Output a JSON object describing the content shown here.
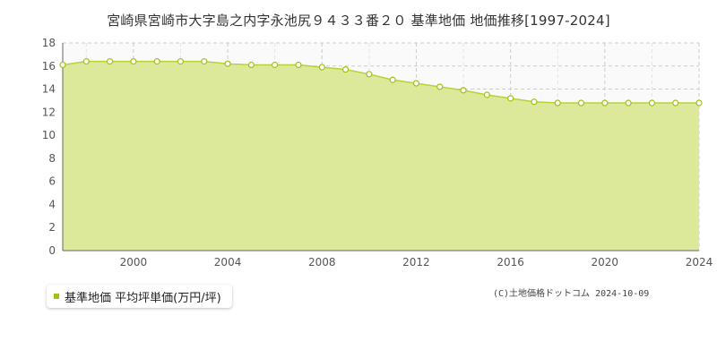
{
  "title": "宮崎県宮崎市大字島之内字永池尻９４３３番２０ 基準地価 地価推移[1997-2024]",
  "credit": "(C)土地価格ドットコム 2024-10-09",
  "colors": {
    "fill": "#dde99a",
    "line": "#b5d337",
    "marker": "#9dc316",
    "grid": "#cccccc",
    "axis": "#666666"
  },
  "chart_data": {
    "type": "area",
    "title": "宮崎県宮崎市大字島之内字永池尻９４３３番２０ 基準地価 地価推移[1997-2024]",
    "xlabel": "",
    "ylabel": "",
    "xlim": [
      1997,
      2024
    ],
    "ylim": [
      0,
      18
    ],
    "x_ticks": [
      2000,
      2004,
      2008,
      2012,
      2016,
      2020,
      2024
    ],
    "y_ticks": [
      0,
      2,
      4,
      6,
      8,
      10,
      12,
      14,
      16,
      18
    ],
    "grid": true,
    "legend_position": "bottom-left",
    "series": [
      {
        "name": "基準地価 平均坪単価(万円/坪)",
        "x": [
          1997,
          1998,
          1999,
          2000,
          2001,
          2002,
          2003,
          2004,
          2005,
          2006,
          2007,
          2008,
          2009,
          2010,
          2011,
          2012,
          2013,
          2014,
          2015,
          2016,
          2017,
          2018,
          2019,
          2020,
          2021,
          2022,
          2023,
          2024
        ],
        "y": [
          16.1,
          16.4,
          16.4,
          16.4,
          16.4,
          16.4,
          16.4,
          16.2,
          16.1,
          16.1,
          16.1,
          15.9,
          15.7,
          15.3,
          14.8,
          14.5,
          14.2,
          13.9,
          13.5,
          13.2,
          12.9,
          12.8,
          12.8,
          12.8,
          12.8,
          12.8,
          12.8,
          12.8
        ]
      }
    ]
  }
}
